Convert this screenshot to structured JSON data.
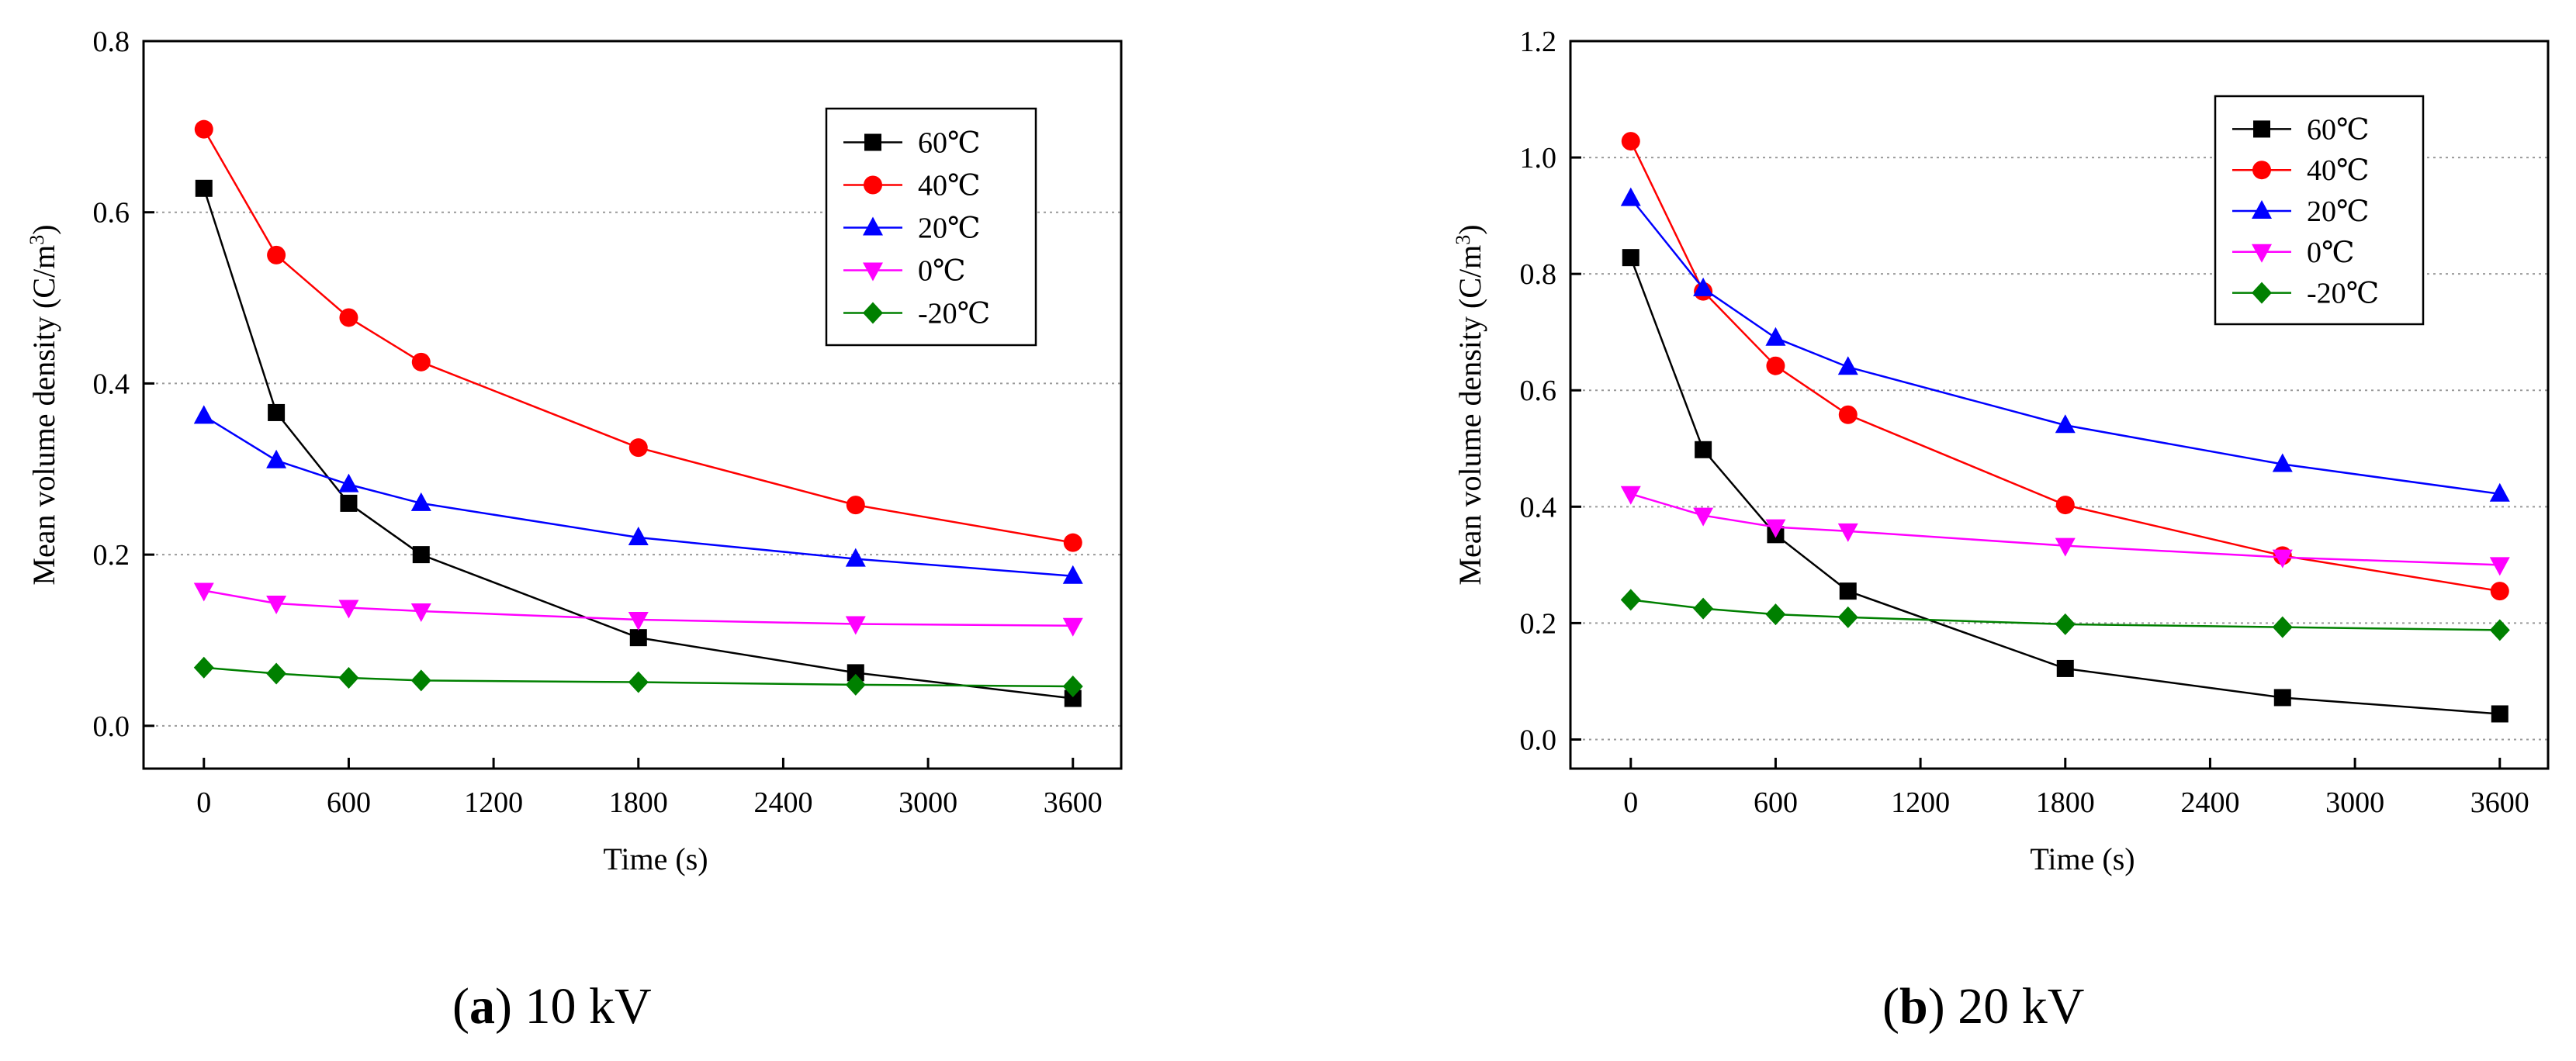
{
  "chart_data": [
    {
      "type": "line",
      "caption_letter": "a",
      "caption_text": "10 kV",
      "xlabel": "Time (s)",
      "ylabel": "Mean volume density (C/m",
      "ylabel_sup": "3",
      "ylabel_end": ")",
      "xlim": [
        -250,
        3800
      ],
      "ylim": [
        -0.05,
        0.8
      ],
      "xticks": [
        0,
        600,
        1200,
        1800,
        2400,
        3000,
        3600
      ],
      "xtick_labels": [
        "0",
        "600",
        "1200",
        "1800",
        "2400",
        "3000",
        "3600"
      ],
      "yticks": [
        0.0,
        0.2,
        0.4,
        0.6,
        0.8
      ],
      "ytick_labels": [
        "0.0",
        "0.2",
        "0.4",
        "0.6",
        "0.8"
      ],
      "grid": "horizontal dotted",
      "legend_position": "top-right",
      "x": [
        0,
        300,
        600,
        900,
        1800,
        2700,
        3600
      ],
      "series": [
        {
          "name": "60℃",
          "color": "#000000",
          "marker": "square",
          "values": [
            0.628,
            0.366,
            0.26,
            0.2,
            0.103,
            0.062,
            0.032
          ]
        },
        {
          "name": "40℃",
          "color": "#ff0000",
          "marker": "circle",
          "values": [
            0.697,
            0.55,
            0.477,
            0.425,
            0.325,
            0.258,
            0.214
          ]
        },
        {
          "name": "20℃",
          "color": "#0000ff",
          "marker": "triangle-up",
          "values": [
            0.362,
            0.31,
            0.282,
            0.26,
            0.22,
            0.195,
            0.175
          ]
        },
        {
          "name": "0℃",
          "color": "#ff00ff",
          "marker": "triangle-down",
          "values": [
            0.158,
            0.143,
            0.138,
            0.134,
            0.124,
            0.119,
            0.117
          ]
        },
        {
          "name": "-20℃",
          "color": "#008000",
          "marker": "diamond",
          "values": [
            0.068,
            0.061,
            0.056,
            0.053,
            0.051,
            0.048,
            0.046
          ]
        }
      ]
    },
    {
      "type": "line",
      "caption_letter": "b",
      "caption_text": "20 kV",
      "xlabel": "Time (s)",
      "ylabel": "Mean volume density (C/m",
      "ylabel_sup": "3",
      "ylabel_end": ")",
      "xlim": [
        -250,
        3800
      ],
      "ylim": [
        -0.05,
        1.2
      ],
      "xticks": [
        0,
        600,
        1200,
        1800,
        2400,
        3000,
        3600
      ],
      "xtick_labels": [
        "0",
        "600",
        "1200",
        "1800",
        "2400",
        "3000",
        "3600"
      ],
      "yticks": [
        0.0,
        0.2,
        0.4,
        0.6,
        0.8,
        1.0,
        1.2
      ],
      "ytick_labels": [
        "0.0",
        "0.2",
        "0.4",
        "0.6",
        "0.8",
        "1.0",
        "1.2"
      ],
      "grid": "horizontal dotted",
      "legend_position": "top-right",
      "x": [
        0,
        300,
        600,
        900,
        1800,
        2700,
        3600
      ],
      "series": [
        {
          "name": "60℃",
          "color": "#000000",
          "marker": "square",
          "values": [
            0.828,
            0.498,
            0.352,
            0.255,
            0.122,
            0.072,
            0.044
          ]
        },
        {
          "name": "40℃",
          "color": "#ff0000",
          "marker": "circle",
          "values": [
            1.028,
            0.77,
            0.642,
            0.558,
            0.403,
            0.316,
            0.255
          ]
        },
        {
          "name": "20℃",
          "color": "#0000ff",
          "marker": "triangle-up",
          "values": [
            0.93,
            0.775,
            0.69,
            0.64,
            0.54,
            0.473,
            0.422
          ]
        },
        {
          "name": "0℃",
          "color": "#ff00ff",
          "marker": "triangle-down",
          "values": [
            0.422,
            0.385,
            0.365,
            0.358,
            0.333,
            0.313,
            0.3
          ]
        },
        {
          "name": "-20℃",
          "color": "#008000",
          "marker": "diamond",
          "values": [
            0.24,
            0.225,
            0.215,
            0.21,
            0.198,
            0.193,
            0.188
          ]
        }
      ]
    }
  ]
}
